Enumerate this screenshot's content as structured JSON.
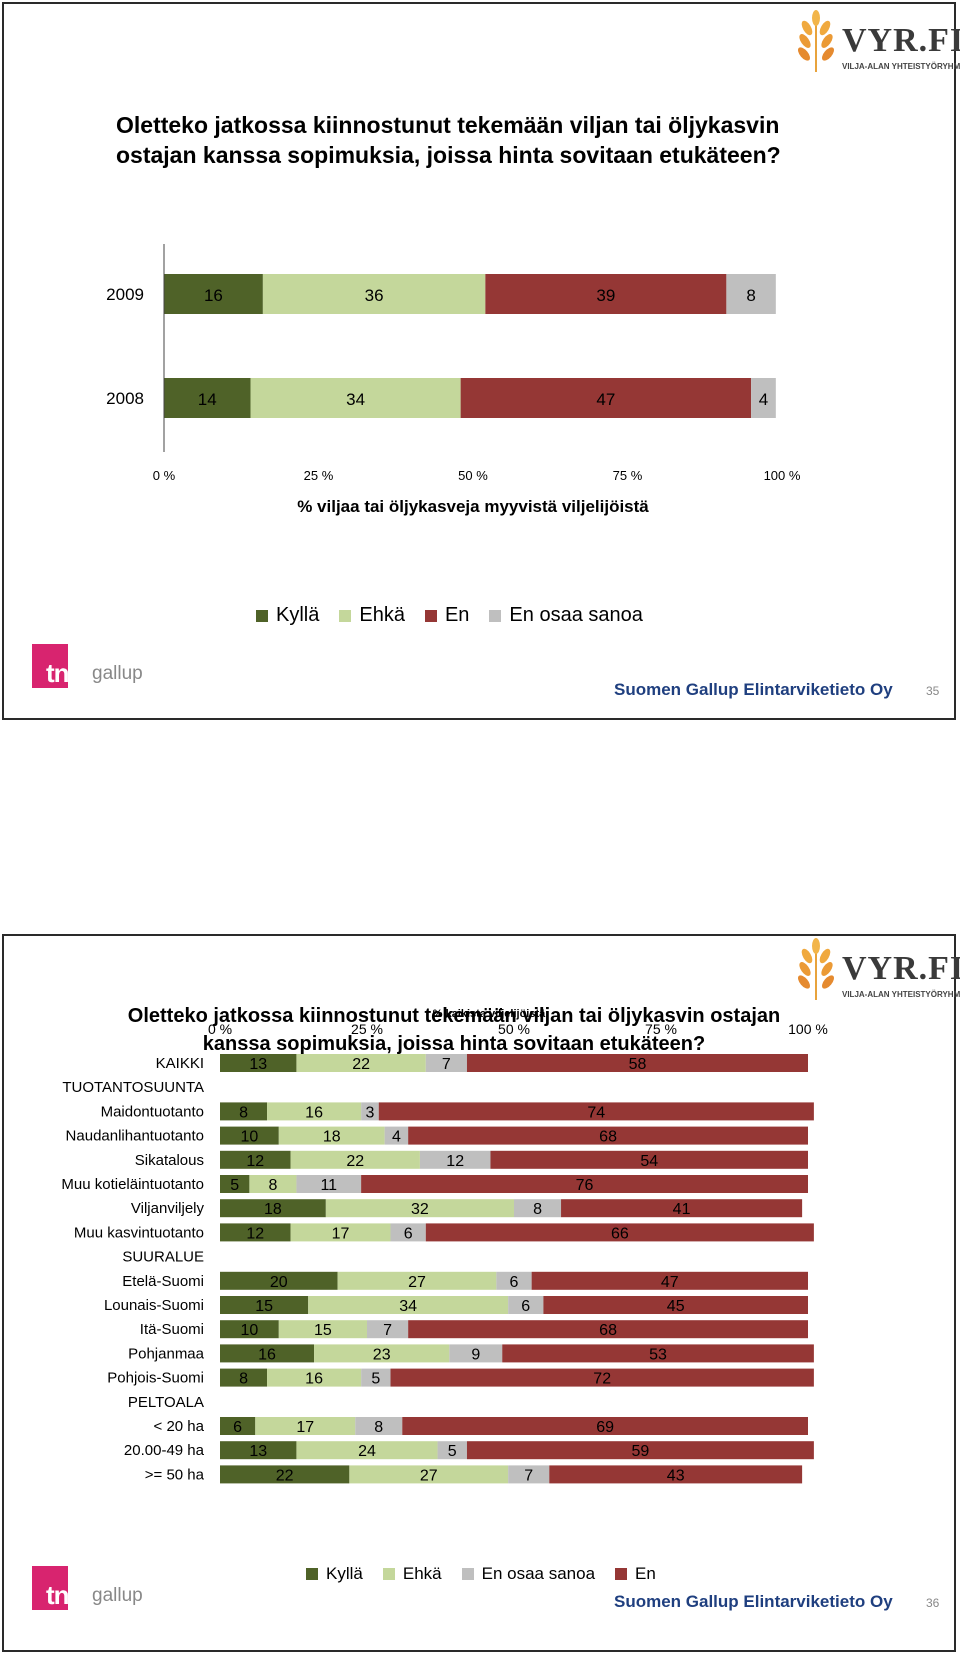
{
  "slide1": {
    "title_line1": "Oletteko jatkossa kiinnostunut tekemään viljan tai öljykasvin",
    "title_line2": "ostajan kanssa sopimuksia, joissa hinta sovitaan etukäteen?",
    "footer": "Suomen Gallup Elintarviketieto Oy",
    "page": "35",
    "logo": {
      "brand": "VYR.FI",
      "tagline": "VILJA-ALAN YHTEISTYÖRYHMÄ"
    },
    "tns": {
      "word": "tns",
      "suffix": "gallup"
    }
  },
  "slide2": {
    "title_line1": "Oletteko jatkossa kiinnostunut tekemään viljan tai öljykasvin ostajan",
    "title_line2": "kanssa sopimuksia, joissa hinta sovitaan etukäteen?",
    "footer": "Suomen Gallup Elintarviketieto Oy",
    "page": "36",
    "logo": {
      "brand": "VYR.FI",
      "tagline": "VILJA-ALAN YHTEISTYÖRYHMÄ"
    },
    "tns": {
      "word": "tns",
      "suffix": "gallup"
    }
  },
  "colors": {
    "kylla": "#4f6228",
    "ehka": "#c4d79b",
    "en": "#953735",
    "eos": "#bfbfbf"
  },
  "chart_data": [
    {
      "type": "bar",
      "orientation": "horizontal",
      "stacked": "percent",
      "categories": [
        "2009",
        "2008"
      ],
      "series": [
        {
          "name": "Kyllä",
          "values": [
            16,
            14
          ]
        },
        {
          "name": "Ehkä",
          "values": [
            36,
            34
          ]
        },
        {
          "name": "En",
          "values": [
            39,
            47
          ]
        },
        {
          "name": "En osaa sanoa",
          "values": [
            8,
            4
          ]
        }
      ],
      "xlabel": "% viljaa tai öljykasveja myyvistä viljelijöistä",
      "xticks": [
        "0 %",
        "25 %",
        "50 %",
        "75 %",
        "100 %"
      ],
      "xlim": [
        0,
        100
      ],
      "legend_position": "bottom"
    },
    {
      "type": "bar",
      "orientation": "horizontal",
      "stacked": "percent",
      "subtitle": "% kaikista viljelijöistä",
      "xticks": [
        "0 %",
        "25 %",
        "50 %",
        "75 %",
        "100 %"
      ],
      "xlim": [
        0,
        100
      ],
      "legend_position": "bottom",
      "categories": [
        "KAIKKI",
        "TUOTANTOSUUNTA",
        "Maidontuotanto",
        "Naudanlihantuotanto",
        "Sikatalous",
        "Muu kotieläintuotanto",
        "Viljanviljely",
        "Muu kasvintuotanto",
        "SUURALUE",
        "Etelä-Suomi",
        "Lounais-Suomi",
        "Itä-Suomi",
        "Pohjanmaa",
        "Pohjois-Suomi",
        "PELTOALA",
        "< 20 ha",
        "20.00-49 ha",
        ">= 50 ha"
      ],
      "series": [
        {
          "name": "Kyllä",
          "values": [
            13,
            null,
            8,
            10,
            12,
            5,
            18,
            12,
            null,
            20,
            15,
            10,
            16,
            8,
            null,
            6,
            13,
            22
          ]
        },
        {
          "name": "Ehkä",
          "values": [
            22,
            null,
            16,
            18,
            22,
            8,
            32,
            17,
            null,
            27,
            34,
            15,
            23,
            16,
            null,
            17,
            24,
            27
          ]
        },
        {
          "name": "En osaa sanoa",
          "values": [
            7,
            null,
            3,
            4,
            12,
            11,
            8,
            6,
            null,
            6,
            6,
            7,
            9,
            5,
            null,
            8,
            5,
            7
          ]
        },
        {
          "name": "En",
          "values": [
            58,
            null,
            74,
            68,
            54,
            76,
            41,
            66,
            null,
            47,
            45,
            68,
            53,
            72,
            null,
            69,
            59,
            43
          ]
        }
      ]
    }
  ]
}
